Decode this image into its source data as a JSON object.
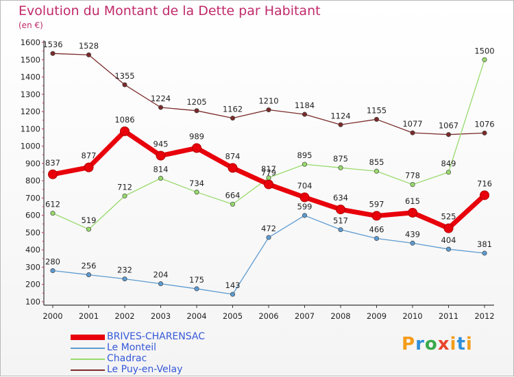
{
  "header": {
    "title": "Evolution du Montant de la Dette par Habitant",
    "subtitle": "(en €)"
  },
  "logo": {
    "text": "Proxiti",
    "letters": [
      "P",
      "r",
      "o",
      "x",
      "i",
      "t",
      "i"
    ],
    "colors": [
      "#f39c1b",
      "#2f8fd8",
      "#3aa94a",
      "#e8452b",
      "#f39c1b",
      "#2f8fd8",
      "#f0a020"
    ]
  },
  "chart_data": {
    "type": "line",
    "title": "Evolution du Montant de la Dette par Habitant",
    "subtitle": "(en €)",
    "x": [
      2000,
      2001,
      2002,
      2003,
      2004,
      2005,
      2006,
      2007,
      2008,
      2009,
      2010,
      2011,
      2012
    ],
    "ylim": [
      100,
      1600
    ],
    "yticks": [
      100,
      200,
      300,
      400,
      500,
      600,
      700,
      800,
      900,
      1000,
      1100,
      1200,
      1300,
      1400,
      1500,
      1600
    ],
    "grid": false,
    "legend_position": "bottom-left",
    "series": [
      {
        "name": "BRIVES-CHARENSAC",
        "color": "#e8000b",
        "line_width": 7,
        "values": [
          837,
          877,
          1086,
          945,
          989,
          874,
          779,
          704,
          634,
          597,
          615,
          525,
          716
        ]
      },
      {
        "name": "Le Monteil",
        "color": "#5d9bd0",
        "line_width": 1.3,
        "values": [
          280,
          256,
          232,
          204,
          175,
          143,
          472,
          599,
          517,
          466,
          439,
          404,
          381
        ]
      },
      {
        "name": "Chadrac",
        "color": "#98da6c",
        "line_width": 1.3,
        "values": [
          612,
          519,
          712,
          814,
          734,
          664,
          817,
          895,
          875,
          855,
          778,
          849,
          1500
        ]
      },
      {
        "name": "Le Puy-en-Velay",
        "color": "#7a2a2a",
        "line_width": 1.3,
        "values": [
          1536,
          1528,
          1355,
          1224,
          1205,
          1162,
          1210,
          1184,
          1124,
          1155,
          1077,
          1067,
          1076
        ]
      }
    ]
  }
}
